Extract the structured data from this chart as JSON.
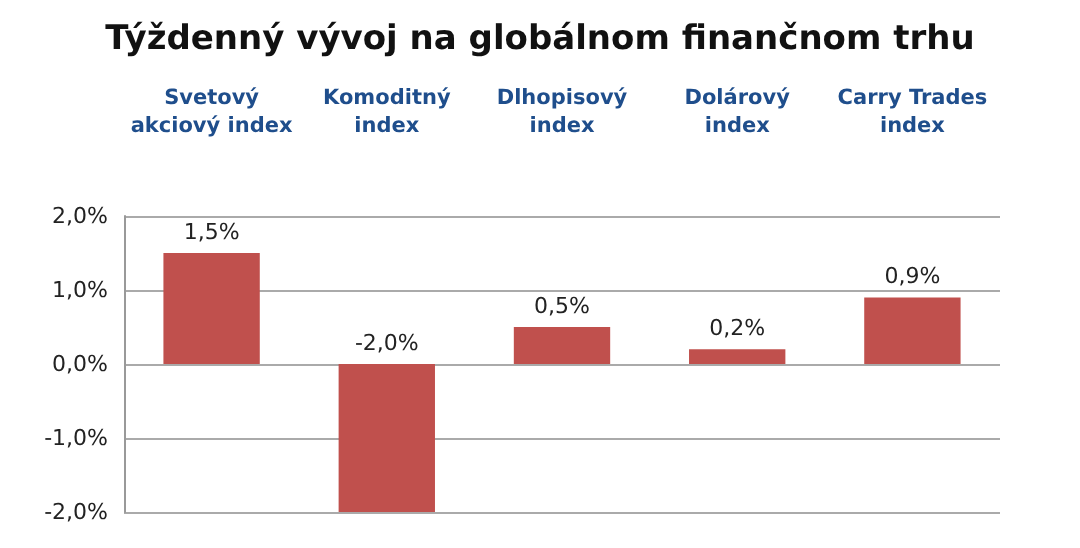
{
  "chart_data": {
    "type": "bar",
    "title": "Týždenný vývoj na globálnom finančnom trhu",
    "categories": [
      "Svetový\nakciový index",
      "Komoditný\nindex",
      "Dlhopisový\nindex",
      "Dolárový\nindex",
      "Carry Trades\nindex"
    ],
    "values": [
      1.5,
      -2.0,
      0.5,
      0.2,
      0.9
    ],
    "value_labels": [
      "1,5%",
      "-2,0%",
      "0,5%",
      "0,2%",
      "0,9%"
    ],
    "color": "#c0504d",
    "ylim": [
      -2,
      2
    ],
    "yticks": [
      {
        "value": -2,
        "label": "-2,0%"
      },
      {
        "value": -1,
        "label": "-1,0%"
      },
      {
        "value": 0,
        "label": "0,0%"
      },
      {
        "value": 1,
        "label": "1,0%"
      },
      {
        "value": 2,
        "label": "2,0%"
      }
    ],
    "grid": true
  }
}
